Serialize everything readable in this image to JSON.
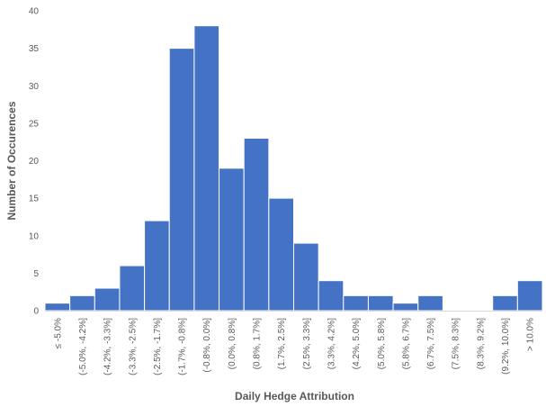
{
  "chart_data": {
    "type": "bar",
    "xlabel": "Daily Hedge Attribution",
    "ylabel": "Number of Occurences",
    "ylim": [
      0,
      40
    ],
    "yticks": [
      0,
      5,
      10,
      15,
      20,
      25,
      30,
      35,
      40
    ],
    "grid": false,
    "bar_color": "#4472c4",
    "categories": [
      "≤ -5.0%",
      "(-5.0%, -4.2%]",
      "(-4.2%, -3.3%]",
      "(-3.3%, -2.5%]",
      "(-2.5%, -1.7%]",
      "(-1.7%, -0.8%]",
      "(-0.8%, 0.0%]",
      "(0.0%, 0.8%]",
      "(0.8%, 1.7%]",
      "(1.7%, 2.5%]",
      "(2.5%, 3.3%]",
      "(3.3%, 4.2%]",
      "(4.2%, 5.0%]",
      "(5.0%, 5.8%]",
      "(5.8%, 6.7%]",
      "(6.7%, 7.5%]",
      "(7.5%, 8.3%]",
      "(8.3%, 9.2%]",
      "(9.2%, 10.0%]",
      "> 10.0%"
    ],
    "values": [
      1,
      2,
      3,
      6,
      12,
      35,
      38,
      19,
      23,
      15,
      9,
      4,
      2,
      2,
      1,
      2,
      0,
      0,
      2,
      4
    ]
  }
}
